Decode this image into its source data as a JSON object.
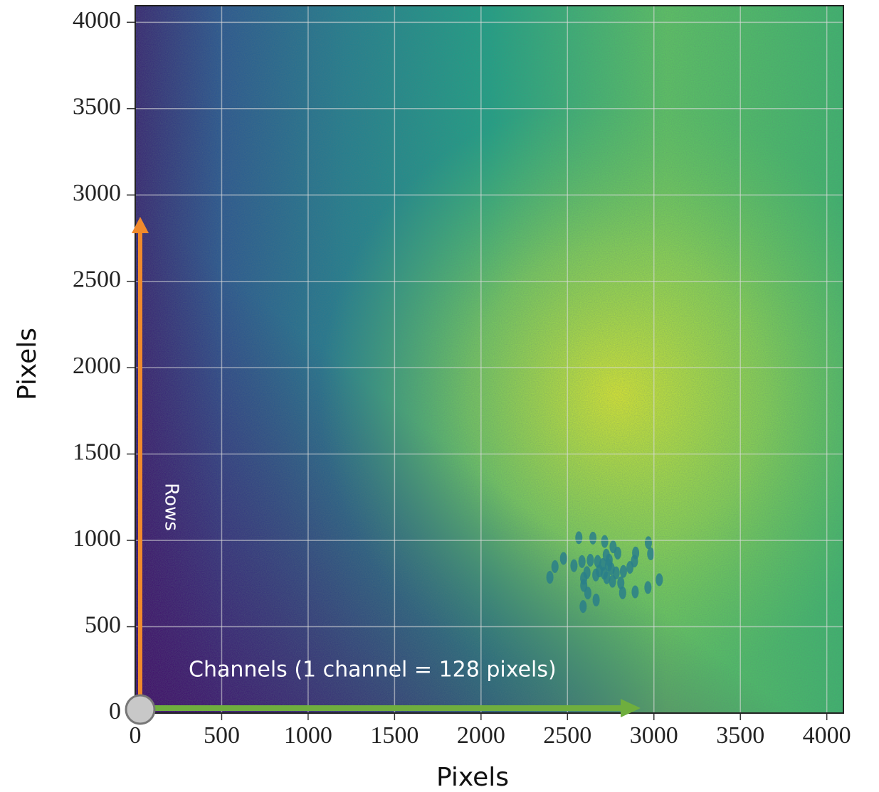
{
  "chart_data": {
    "type": "image",
    "xlabel": "Pixels",
    "ylabel": "Pixels",
    "xlim": [
      0,
      4096
    ],
    "ylim": [
      0,
      4096
    ],
    "xticks": [
      0,
      500,
      1000,
      1500,
      2000,
      2500,
      3000,
      3500,
      4000
    ],
    "yticks": [
      0,
      500,
      1000,
      1500,
      2000,
      2500,
      3000,
      3500,
      4000
    ],
    "grid": true,
    "annotations": [
      "Rows",
      "Channels (1 channel = 128 pixels)"
    ]
  }
}
